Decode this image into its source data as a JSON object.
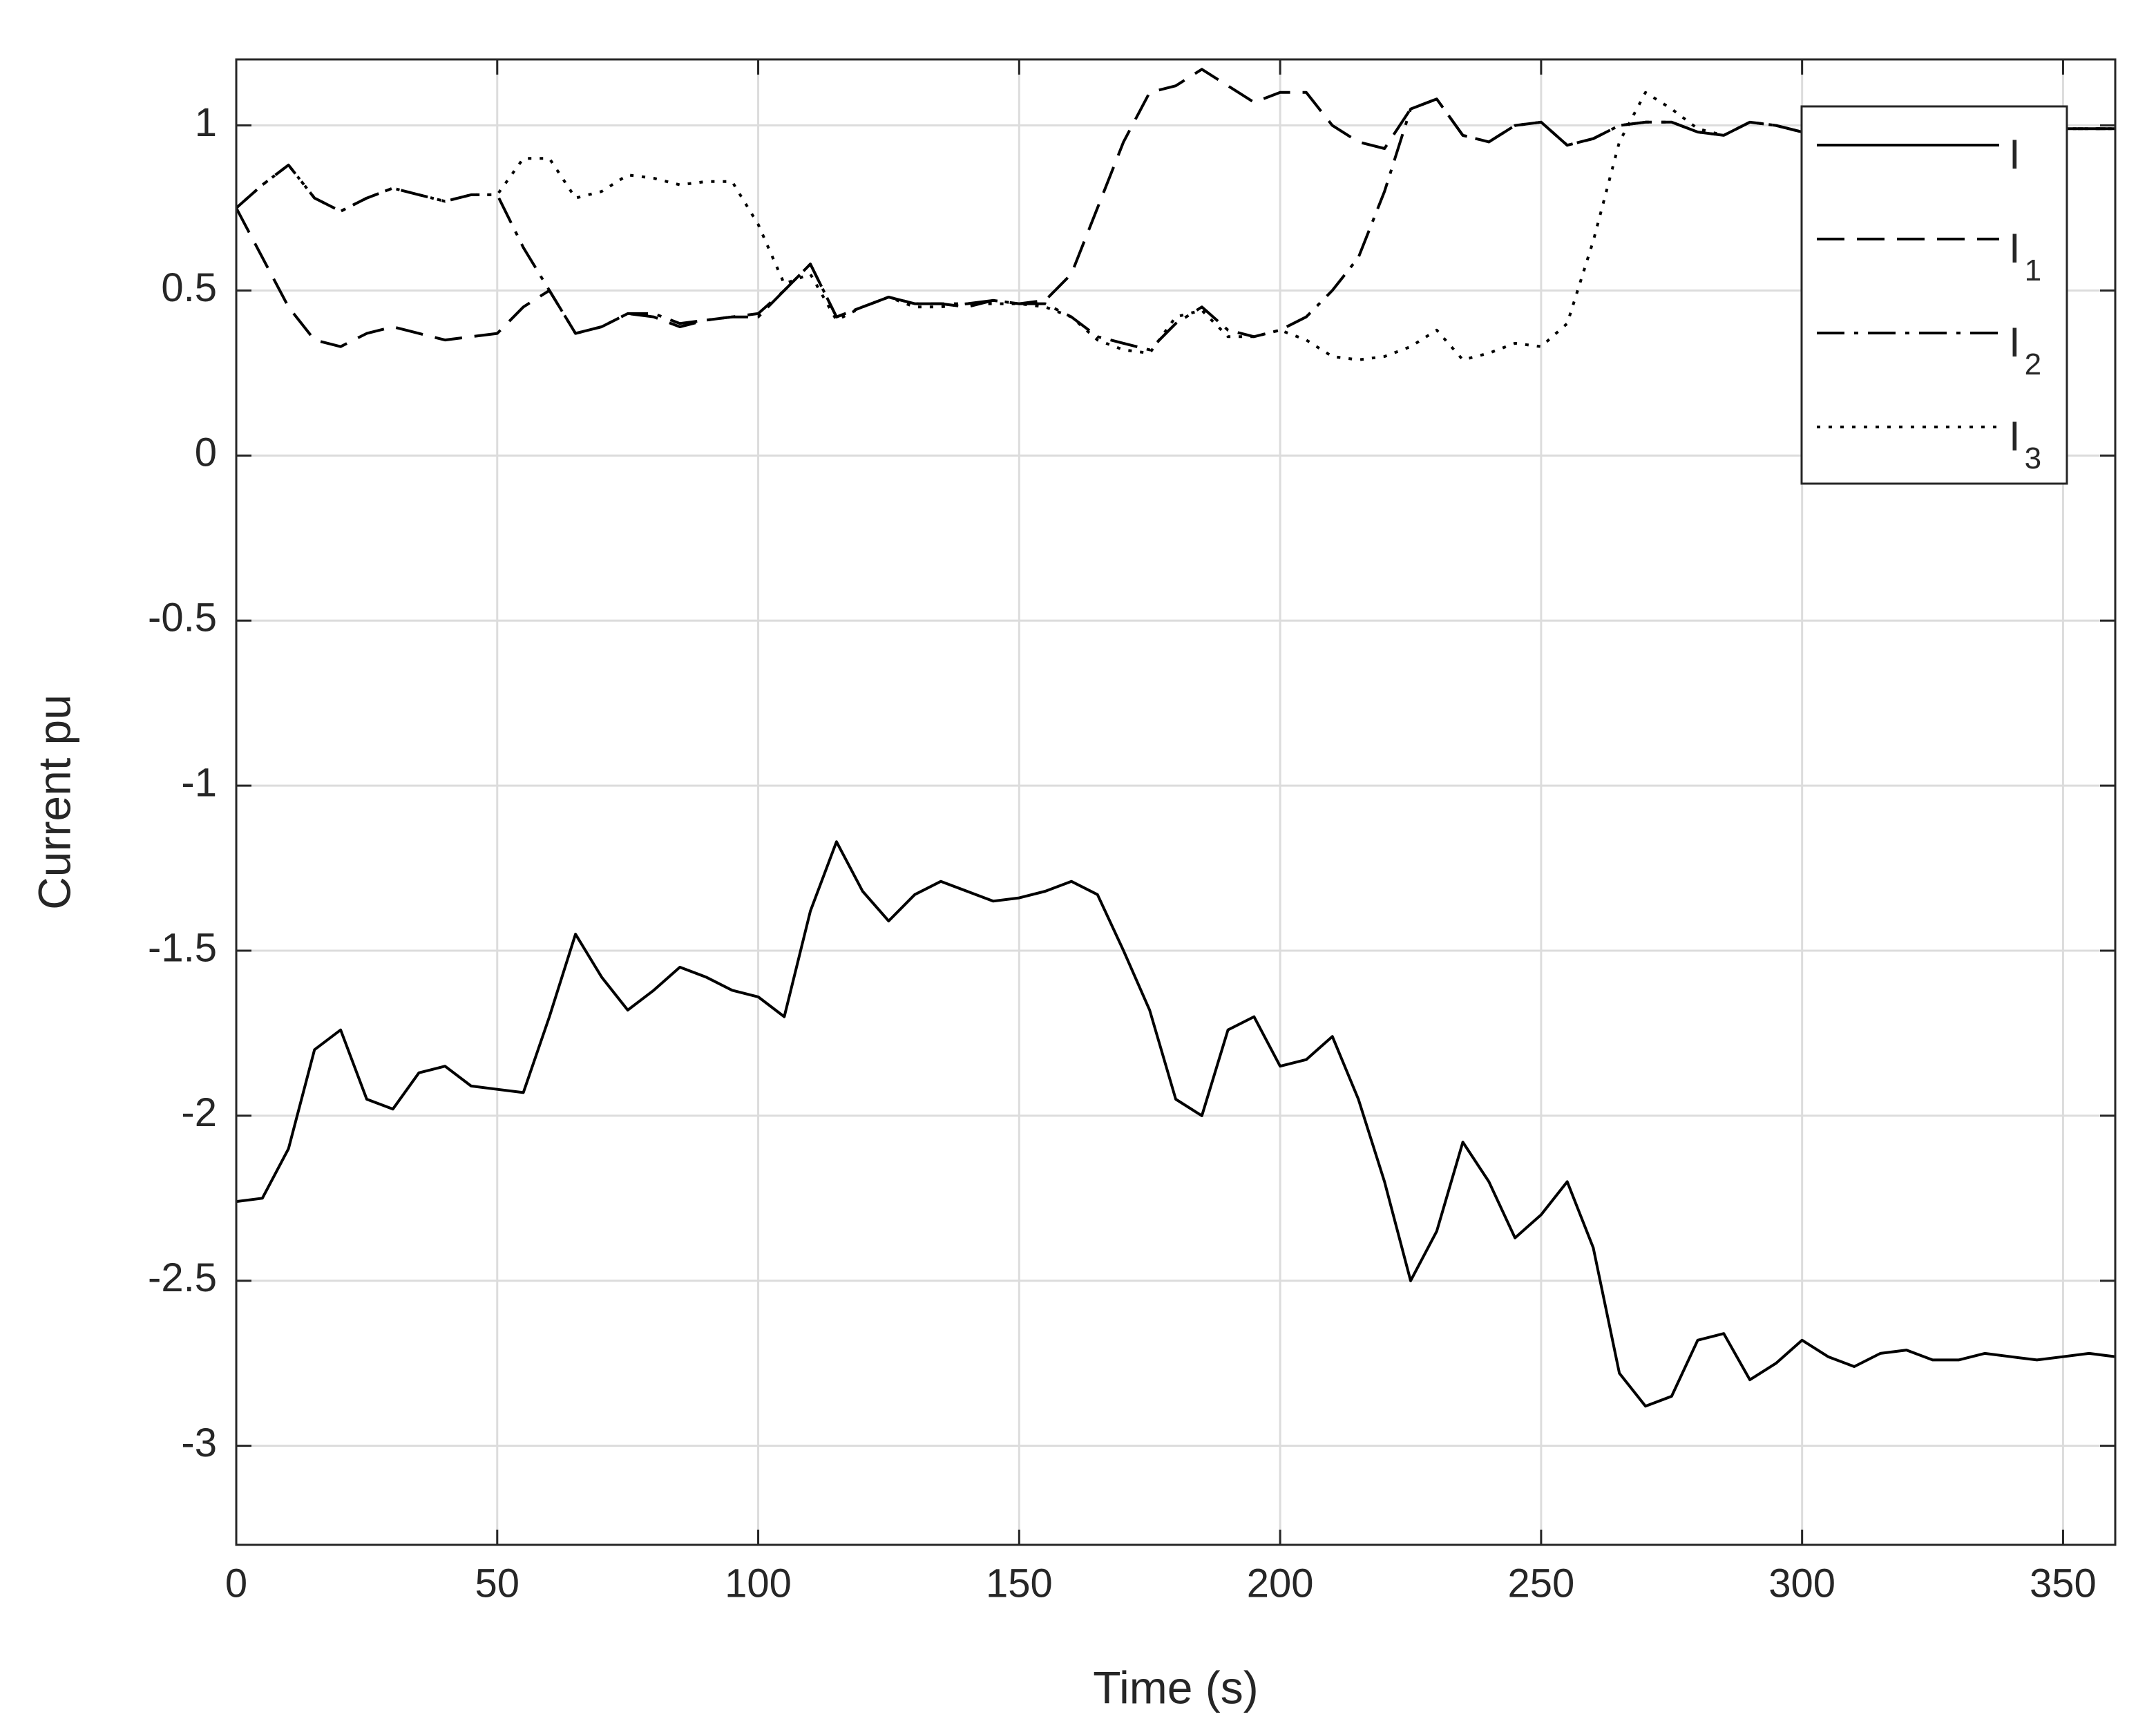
{
  "chart_data": {
    "type": "line",
    "xlabel": "Time (s)",
    "ylabel": "Current pu",
    "x": [
      0,
      5,
      10,
      15,
      20,
      25,
      30,
      35,
      40,
      45,
      50,
      55,
      60,
      65,
      70,
      75,
      80,
      85,
      90,
      95,
      100,
      105,
      110,
      115,
      120,
      125,
      130,
      135,
      140,
      145,
      150,
      155,
      160,
      165,
      170,
      175,
      180,
      185,
      190,
      195,
      200,
      205,
      210,
      215,
      220,
      225,
      230,
      235,
      240,
      245,
      250,
      255,
      260,
      265,
      270,
      275,
      280,
      285,
      290,
      295,
      300,
      305,
      310,
      315,
      320,
      325,
      330,
      335,
      340,
      345,
      350,
      355,
      360
    ],
    "series": [
      {
        "name": "I",
        "color": "#000000",
        "dash": "solid",
        "values": [
          -2.26,
          -2.25,
          -2.1,
          -1.8,
          -1.74,
          -1.95,
          -1.98,
          -1.87,
          -1.85,
          -1.91,
          -1.92,
          -1.93,
          -1.7,
          -1.45,
          -1.58,
          -1.68,
          -1.62,
          -1.55,
          -1.58,
          -1.62,
          -1.64,
          -1.7,
          -1.38,
          -1.17,
          -1.32,
          -1.41,
          -1.33,
          -1.29,
          -1.32,
          -1.35,
          -1.34,
          -1.32,
          -1.29,
          -1.33,
          -1.5,
          -1.68,
          -1.95,
          -2.0,
          -1.74,
          -1.7,
          -1.85,
          -1.83,
          -1.76,
          -1.95,
          -2.2,
          -2.5,
          -2.35,
          -2.08,
          -2.2,
          -2.37,
          -2.3,
          -2.2,
          -2.4,
          -2.78,
          -2.88,
          -2.85,
          -2.68,
          -2.66,
          -2.8,
          -2.75,
          -2.68,
          -2.73,
          -2.76,
          -2.72,
          -2.71,
          -2.74,
          -2.74,
          -2.72,
          -2.73,
          -2.74,
          -2.73,
          -2.72,
          -2.73
        ]
      },
      {
        "name": "I1",
        "color": "#000000",
        "dash": "dashed",
        "values": [
          0.75,
          0.6,
          0.45,
          0.35,
          0.33,
          0.37,
          0.39,
          0.37,
          0.35,
          0.36,
          0.37,
          0.45,
          0.5,
          0.37,
          0.39,
          0.43,
          0.42,
          0.39,
          0.41,
          0.42,
          0.43,
          0.5,
          0.58,
          0.42,
          0.45,
          0.48,
          0.46,
          0.46,
          0.45,
          0.47,
          0.46,
          0.47,
          0.55,
          0.75,
          0.95,
          1.1,
          1.12,
          1.17,
          1.12,
          1.07,
          1.1,
          1.1,
          1.0,
          0.95,
          0.93,
          1.05,
          1.08,
          0.97,
          0.95,
          1.0,
          1.01,
          0.94,
          0.96,
          1.0,
          1.01,
          1.01,
          0.98,
          0.97,
          1.01,
          1.0,
          0.98,
          0.99,
          0.99,
          0.99,
          0.99,
          0.99,
          0.99,
          0.99,
          0.99,
          0.99,
          0.99,
          0.99,
          0.99
        ]
      },
      {
        "name": "I2",
        "color": "#000000",
        "dash": "dashdot",
        "values": [
          0.75,
          0.82,
          0.88,
          0.78,
          0.74,
          0.78,
          0.81,
          0.79,
          0.77,
          0.79,
          0.79,
          0.63,
          0.5,
          0.37,
          0.39,
          0.43,
          0.43,
          0.4,
          0.41,
          0.42,
          0.42,
          0.5,
          0.58,
          0.42,
          0.45,
          0.48,
          0.46,
          0.46,
          0.46,
          0.47,
          0.46,
          0.46,
          0.42,
          0.36,
          0.34,
          0.32,
          0.4,
          0.45,
          0.38,
          0.36,
          0.38,
          0.42,
          0.5,
          0.6,
          0.8,
          1.05,
          1.08,
          0.97,
          0.95,
          1.0,
          1.01,
          0.94,
          0.96,
          1.0,
          1.01,
          1.01,
          0.98,
          0.97,
          1.01,
          1.0,
          0.98,
          0.99,
          0.99,
          0.99,
          0.99,
          0.99,
          0.99,
          0.99,
          0.99,
          0.99,
          0.99,
          0.99,
          0.99
        ]
      },
      {
        "name": "I3",
        "color": "#000000",
        "dash": "dotted",
        "values": [
          0.75,
          0.82,
          0.88,
          0.78,
          0.74,
          0.78,
          0.81,
          0.79,
          0.77,
          0.79,
          0.79,
          0.9,
          0.9,
          0.78,
          0.8,
          0.85,
          0.84,
          0.82,
          0.83,
          0.83,
          0.7,
          0.52,
          0.55,
          0.41,
          0.45,
          0.48,
          0.45,
          0.45,
          0.46,
          0.46,
          0.46,
          0.45,
          0.42,
          0.35,
          0.32,
          0.31,
          0.42,
          0.44,
          0.36,
          0.36,
          0.38,
          0.35,
          0.3,
          0.29,
          0.3,
          0.33,
          0.38,
          0.29,
          0.31,
          0.34,
          0.33,
          0.4,
          0.65,
          0.95,
          1.1,
          1.05,
          0.99,
          0.97,
          1.01,
          1.0,
          0.98,
          0.99,
          0.99,
          0.99,
          0.99,
          0.99,
          0.99,
          0.99,
          0.99,
          0.99,
          0.99,
          0.99,
          0.99
        ]
      }
    ],
    "xlim": [
      0,
      360
    ],
    "ylim": [
      -3.3,
      1.2
    ],
    "xticks": [
      0,
      50,
      100,
      150,
      200,
      250,
      300,
      350
    ],
    "yticks": [
      -3,
      -2.5,
      -2,
      -1.5,
      -1,
      -0.5,
      0,
      0.5,
      1
    ],
    "grid": true,
    "legend": "northeast"
  }
}
